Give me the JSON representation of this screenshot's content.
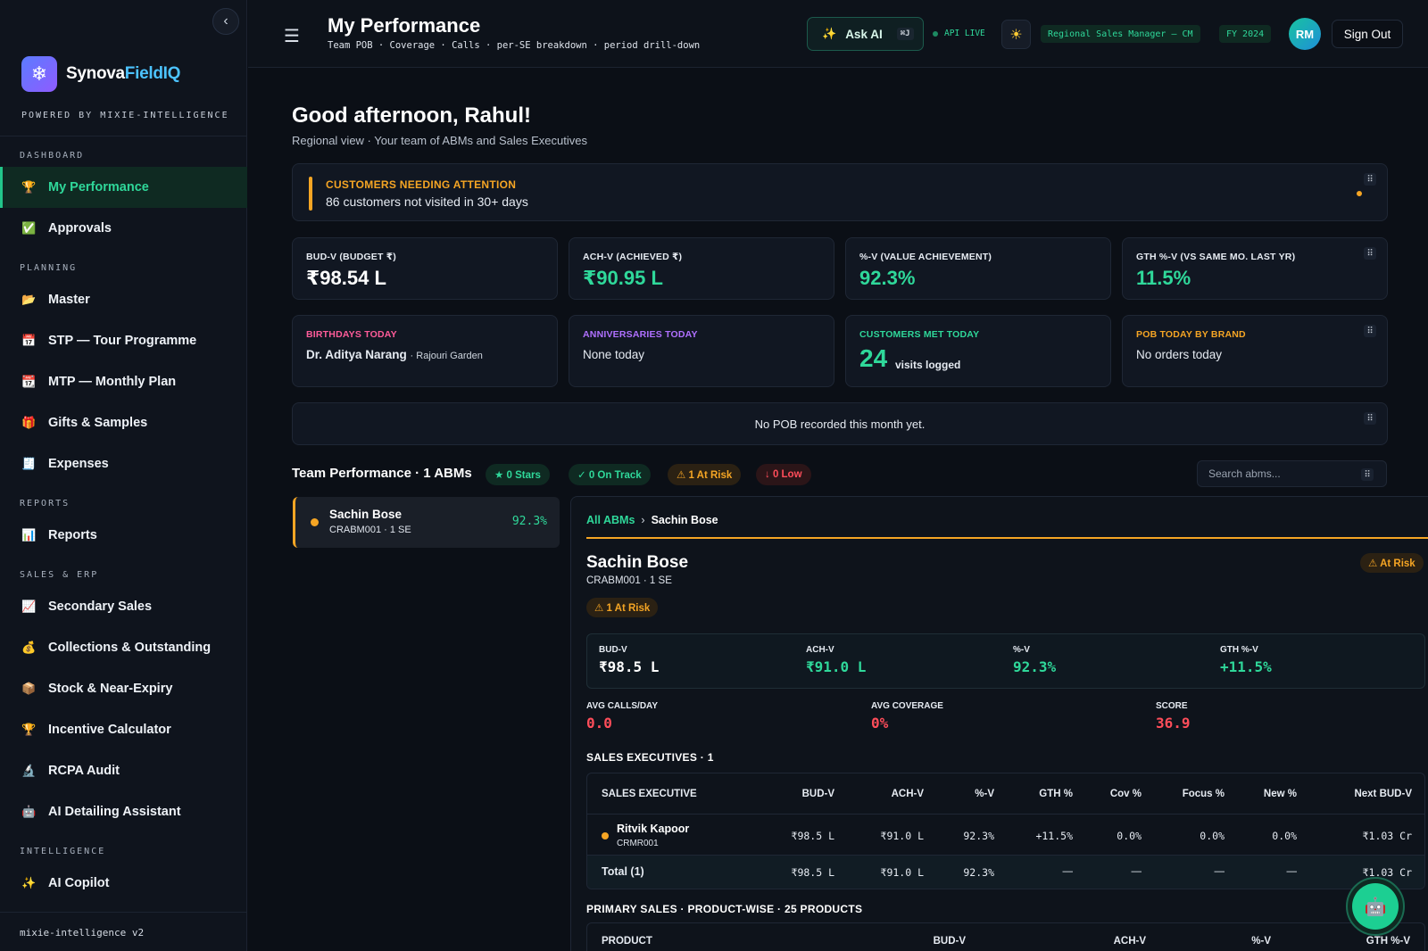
{
  "sidebar": {
    "brand_prefix": "Synova",
    "brand_accent": "FieldIQ",
    "powered": "POWERED BY MIXIE-INTELLIGENCE",
    "sections": {
      "dashboard": "DASHBOARD",
      "planning": "PLANNING",
      "reports": "REPORTS",
      "sales_erp": "SALES & ERP",
      "intelligence": "INTELLIGENCE"
    },
    "items": {
      "my_performance": "My Performance",
      "approvals": "Approvals",
      "master": "Master",
      "stp": "STP — Tour Programme",
      "mtp": "MTP — Monthly Plan",
      "gifts": "Gifts & Samples",
      "expenses": "Expenses",
      "reports": "Reports",
      "secondary_sales": "Secondary Sales",
      "collections": "Collections & Outstanding",
      "stock": "Stock & Near-Expiry",
      "incentive": "Incentive Calculator",
      "rcpa": "RCPA Audit",
      "ai_detailing": "AI Detailing Assistant",
      "ai_copilot": "AI Copilot"
    },
    "footer": "mixie-intelligence v2"
  },
  "header": {
    "title": "My Performance",
    "subtitle": "Team POB · Coverage · Calls · per-SE breakdown · period drill-down",
    "ask_ai": "Ask AI",
    "shortcut": "⌘J",
    "api_status": "API LIVE",
    "role": "Regional Sales Manager — CM",
    "fy": "FY 2024",
    "avatar_initials": "RM",
    "sign_out": "Sign Out"
  },
  "greeting": {
    "title": "Good afternoon, Rahul!",
    "subtitle": "Regional view · Your team of ABMs and Sales Executives"
  },
  "attention": {
    "title": "CUSTOMERS NEEDING ATTENTION",
    "text": "86 customers not visited in 30+ days"
  },
  "kpis": {
    "budv": {
      "label": "BUD-V (BUDGET ₹)",
      "value": "₹98.54 L"
    },
    "achv": {
      "label": "ACH-V (ACHIEVED ₹)",
      "value": "₹90.95 L"
    },
    "pctv": {
      "label": "%-V (VALUE ACHIEVEMENT)",
      "value": "92.3%"
    },
    "gthv": {
      "label": "GTH %-V (VS SAME MO. LAST YR)",
      "value": "11.5%"
    }
  },
  "info": {
    "birthdays": {
      "label": "BIRTHDAYS TODAY",
      "name": "Dr. Aditya Narang",
      "place": "· Rajouri Garden"
    },
    "anniversaries": {
      "label": "ANNIVERSARIES TODAY",
      "text": "None today"
    },
    "met": {
      "label": "CUSTOMERS MET TODAY",
      "count": "24",
      "text": "visits logged"
    },
    "pob": {
      "label": "POB TODAY BY BRAND",
      "text": "No orders today"
    }
  },
  "pob_month": "No POB recorded this month yet.",
  "team": {
    "title": "Team Performance · 1 ABMs",
    "stars": "★ 0 Stars",
    "on_track": "✓ 0 On Track",
    "at_risk": "⚠ 1 At Risk",
    "low": "↓ 0 Low",
    "search_placeholder": "Search abms..."
  },
  "abm_list": [
    {
      "name": "Sachin Bose",
      "sub": "CRABM001 · 1 SE",
      "pct": "92.3%"
    }
  ],
  "detail": {
    "crumb_root": "All ABMs",
    "crumb_sep": "›",
    "crumb_current": "Sachin Bose",
    "name": "Sachin Bose",
    "sub": "CRABM001 · 1 SE",
    "status": "⚠ At Risk",
    "risk_count": "⚠ 1 At Risk",
    "kpis": {
      "budv": {
        "label": "BUD-V",
        "value": "₹98.5 L"
      },
      "achv": {
        "label": "ACH-V",
        "value": "₹91.0 L"
      },
      "pctv": {
        "label": "%-V",
        "value": "92.3%"
      },
      "gthv": {
        "label": "GTH %-V",
        "value": "+11.5%"
      }
    },
    "avgs": {
      "calls": {
        "label": "AVG CALLS/DAY",
        "value": "0.0"
      },
      "coverage": {
        "label": "AVG COVERAGE",
        "value": "0%"
      },
      "score": {
        "label": "SCORE",
        "value": "36.9"
      }
    },
    "se_title": "SALES EXECUTIVES · 1",
    "se_table": {
      "headers": [
        "SALES EXECUTIVE",
        "BUD-V",
        "ACH-V",
        "%-V",
        "GTH %",
        "Cov %",
        "Focus %",
        "New %",
        "Next BUD-V"
      ],
      "rows": [
        {
          "name": "Ritvik Kapoor",
          "code": "CRMR001",
          "budv": "₹98.5 L",
          "achv": "₹91.0 L",
          "pctv": "92.3%",
          "gth": "+11.5%",
          "cov": "0.0%",
          "focus": "0.0%",
          "new": "0.0%",
          "next": "₹1.03 Cr"
        }
      ],
      "total": {
        "label": "Total (1)",
        "budv": "₹98.5 L",
        "achv": "₹91.0 L",
        "pctv": "92.3%",
        "gth": "—",
        "cov": "—",
        "focus": "—",
        "new": "—",
        "next": "₹1.03 Cr"
      }
    },
    "ps_title": "PRIMARY SALES · PRODUCT-WISE · 25 PRODUCTS",
    "ps_headers": [
      "PRODUCT",
      "BUD-V",
      "ACH-V",
      "%-V",
      "GTH %-V"
    ]
  }
}
